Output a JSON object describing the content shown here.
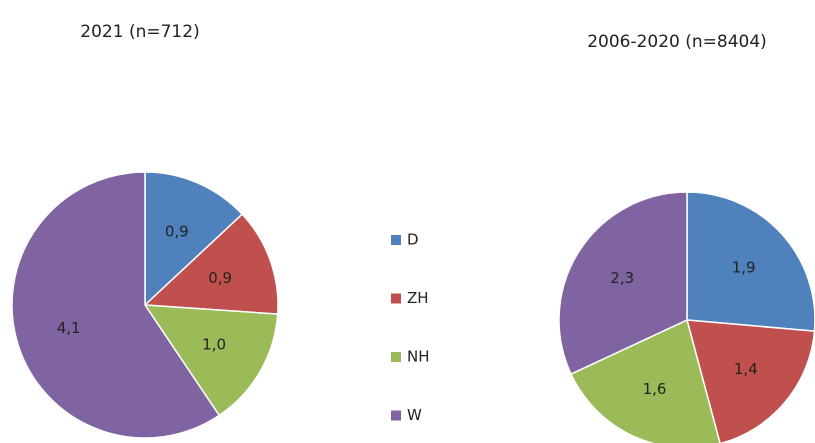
{
  "chart_data": [
    {
      "type": "pie",
      "title": "2021 (n=712)",
      "categories": [
        "D",
        "ZH",
        "NH",
        "W"
      ],
      "values": [
        0.9,
        0.9,
        1.0,
        4.1
      ],
      "value_labels": [
        "0,9",
        "0,9",
        "1,0",
        "4,1"
      ],
      "colors": [
        "#4f81bd",
        "#c0504d",
        "#9bbb59",
        "#8064a2"
      ]
    },
    {
      "type": "pie",
      "title": "2006-2020 (n=8404)",
      "categories": [
        "D",
        "ZH",
        "NH",
        "W"
      ],
      "values": [
        1.9,
        1.4,
        1.6,
        2.3
      ],
      "value_labels": [
        "1,9",
        "1,4",
        "1,6",
        "2,3"
      ],
      "colors": [
        "#4f81bd",
        "#c0504d",
        "#9bbb59",
        "#8064a2"
      ]
    }
  ]
}
